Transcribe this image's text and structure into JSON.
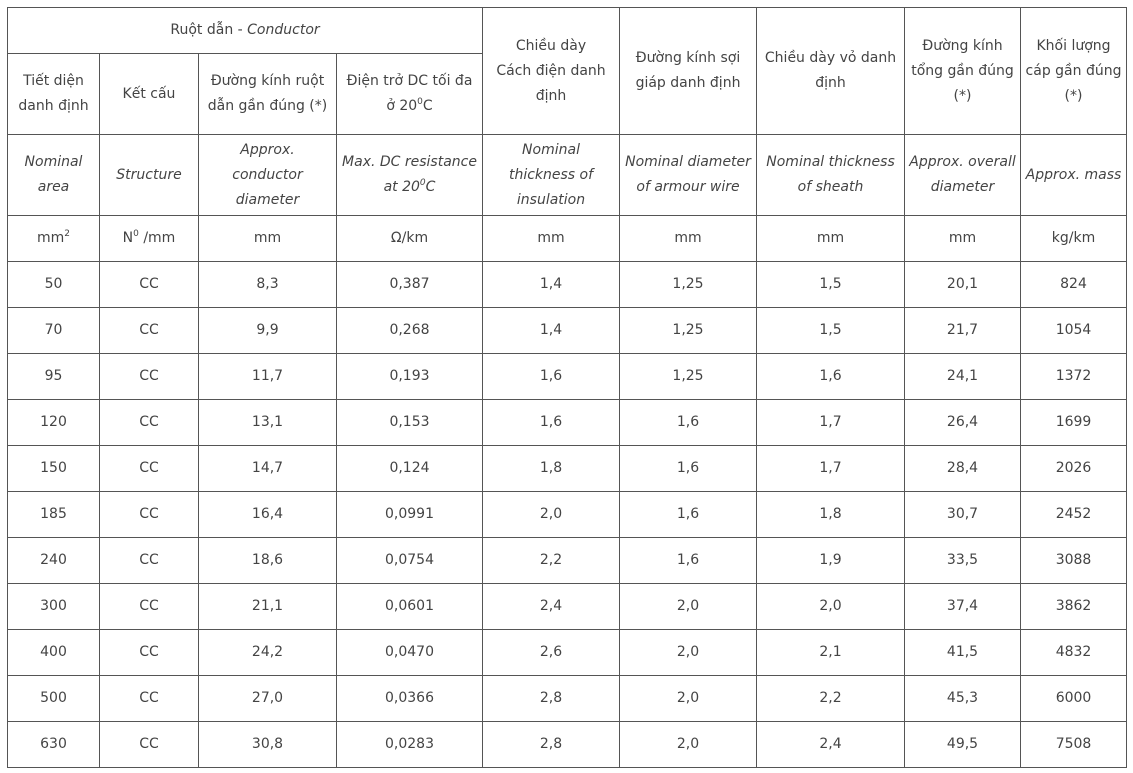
{
  "header": {
    "conductor_group_vi": "Ruột dẫn - ",
    "conductor_group_en": "Conductor",
    "columns_vi": {
      "area": "Tiết diện danh định",
      "structure": "Kết cấu",
      "conductor_diameter": "Đường kính ruột dẫn gần đúng (*)",
      "dc_resistance": "Điện trở DC tối đa ở 20",
      "dc_resistance_sup": "0",
      "dc_resistance_unit": "C",
      "insulation_line1": "Chiều dày",
      "insulation_line2": "Cách điện danh định",
      "armour": "Đường kính sợi giáp danh định",
      "sheath": "Chiều dày vỏ danh định",
      "overall_diameter": "Đường kính tổng gần đúng (*)",
      "mass": "Khối lượng cáp gần đúng (*)"
    },
    "columns_en": {
      "area": "Nominal area",
      "structure": "Structure",
      "conductor_diameter": "Approx. conductor diameter",
      "dc_resistance": "Max. DC resistance at 20",
      "dc_resistance_sup": "0",
      "dc_resistance_unit": "C",
      "insulation": "Nominal thickness of insulation",
      "armour": "Nominal diameter of armour wire",
      "sheath": "Nominal thickness of sheath",
      "overall_diameter": "Approx. overall diameter",
      "mass": "Approx. mass"
    },
    "units": {
      "area": "mm",
      "area_sup": "2",
      "structure_pre": "N",
      "structure_sup": "0",
      "structure_post": " /mm",
      "conductor_diameter": "mm",
      "dc_resistance": "Ω/km",
      "insulation": "mm",
      "armour": "mm",
      "sheath": "mm",
      "overall_diameter": "mm",
      "mass": "kg/km"
    }
  },
  "rows": [
    [
      "50",
      "CC",
      "8,3",
      "0,387",
      "1,4",
      "1,25",
      "1,5",
      "20,1",
      "824"
    ],
    [
      "70",
      "CC",
      "9,9",
      "0,268",
      "1,4",
      "1,25",
      "1,5",
      "21,7",
      "1054"
    ],
    [
      "95",
      "CC",
      "11,7",
      "0,193",
      "1,6",
      "1,25",
      "1,6",
      "24,1",
      "1372"
    ],
    [
      "120",
      "CC",
      "13,1",
      "0,153",
      "1,6",
      "1,6",
      "1,7",
      "26,4",
      "1699"
    ],
    [
      "150",
      "CC",
      "14,7",
      "0,124",
      "1,8",
      "1,6",
      "1,7",
      "28,4",
      "2026"
    ],
    [
      "185",
      "CC",
      "16,4",
      "0,0991",
      "2,0",
      "1,6",
      "1,8",
      "30,7",
      "2452"
    ],
    [
      "240",
      "CC",
      "18,6",
      "0,0754",
      "2,2",
      "1,6",
      "1,9",
      "33,5",
      "3088"
    ],
    [
      "300",
      "CC",
      "21,1",
      "0,0601",
      "2,4",
      "2,0",
      "2,0",
      "37,4",
      "3862"
    ],
    [
      "400",
      "CC",
      "24,2",
      "0,0470",
      "2,6",
      "2,0",
      "2,1",
      "41,5",
      "4832"
    ],
    [
      "500",
      "CC",
      "27,0",
      "0,0366",
      "2,8",
      "2,0",
      "2,2",
      "45,3",
      "6000"
    ],
    [
      "630",
      "CC",
      "30,8",
      "0,0283",
      "2,8",
      "2,0",
      "2,4",
      "49,5",
      "7508"
    ]
  ]
}
